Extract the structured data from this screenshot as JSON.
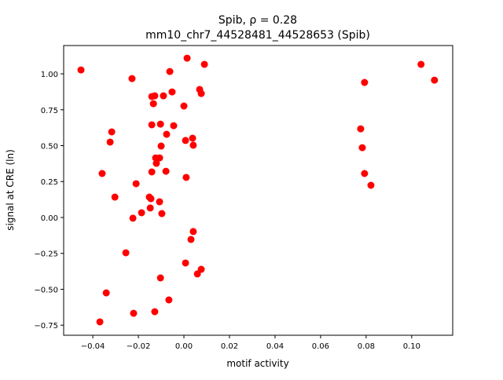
{
  "chart_data": {
    "type": "scatter",
    "title_line1": "Spib, ρ = 0.28",
    "title_line2": "mm10_chr7_44528481_44528653 (Spib)",
    "xlabel": "motif activity",
    "ylabel": "signal at CRE (ln)",
    "xlim": [
      -0.0528,
      0.118
    ],
    "ylim": [
      -0.82,
      1.197
    ],
    "xticks": [
      -0.04,
      -0.02,
      0.0,
      0.02,
      0.04,
      0.06,
      0.08,
      0.1
    ],
    "xtick_labels": [
      "−0.04",
      "−0.02",
      "0.00",
      "0.02",
      "0.04",
      "0.06",
      "0.08",
      "0.10"
    ],
    "yticks": [
      -0.75,
      -0.5,
      -0.25,
      0.0,
      0.25,
      0.5,
      0.75,
      1.0
    ],
    "ytick_labels": [
      "−0.75",
      "−0.50",
      "−0.25",
      "0.00",
      "0.25",
      "0.50",
      "0.75",
      "1.00"
    ],
    "grid": false,
    "marker_color": "#ff0000",
    "points": [
      [
        -0.0452,
        1.027
      ],
      [
        -0.0228,
        0.967
      ],
      [
        -0.0062,
        1.016
      ],
      [
        0.0014,
        1.109
      ],
      [
        0.009,
        1.066
      ],
      [
        -0.0052,
        0.874
      ],
      [
        -0.0128,
        0.847
      ],
      [
        -0.0141,
        0.842
      ],
      [
        -0.009,
        0.847
      ],
      [
        -0.0134,
        0.792
      ],
      [
        0.0069,
        0.891
      ],
      [
        0.0076,
        0.863
      ],
      [
        0.0,
        0.776
      ],
      [
        -0.0141,
        0.645
      ],
      [
        -0.0103,
        0.65
      ],
      [
        -0.0045,
        0.639
      ],
      [
        -0.0317,
        0.596
      ],
      [
        -0.0324,
        0.525
      ],
      [
        -0.0076,
        0.579
      ],
      [
        0.0007,
        0.536
      ],
      [
        0.0038,
        0.552
      ],
      [
        0.0041,
        0.503
      ],
      [
        -0.01,
        0.497
      ],
      [
        -0.0124,
        0.415
      ],
      [
        -0.0107,
        0.415
      ],
      [
        -0.0121,
        0.377
      ],
      [
        -0.0141,
        0.317
      ],
      [
        -0.0079,
        0.322
      ],
      [
        -0.0359,
        0.306
      ],
      [
        0.001,
        0.279
      ],
      [
        -0.021,
        0.235
      ],
      [
        -0.0303,
        0.142
      ],
      [
        -0.0152,
        0.142
      ],
      [
        -0.0145,
        0.131
      ],
      [
        -0.0107,
        0.109
      ],
      [
        -0.0148,
        0.066
      ],
      [
        -0.0186,
        0.033
      ],
      [
        -0.0097,
        0.027
      ],
      [
        -0.0224,
        -0.005
      ],
      [
        0.0041,
        -0.098
      ],
      [
        0.0031,
        -0.153
      ],
      [
        -0.0255,
        -0.246
      ],
      [
        0.0007,
        -0.317
      ],
      [
        0.0076,
        -0.361
      ],
      [
        0.0059,
        -0.393
      ],
      [
        -0.0103,
        -0.421
      ],
      [
        -0.0341,
        -0.525
      ],
      [
        -0.0066,
        -0.574
      ],
      [
        -0.0221,
        -0.667
      ],
      [
        -0.0128,
        -0.656
      ],
      [
        -0.0369,
        -0.727
      ],
      [
        0.1041,
        1.066
      ],
      [
        0.11,
        0.956
      ],
      [
        0.0793,
        0.94
      ],
      [
        0.0776,
        0.617
      ],
      [
        0.0783,
        0.486
      ],
      [
        0.0793,
        0.306
      ],
      [
        0.0821,
        0.224
      ]
    ]
  }
}
